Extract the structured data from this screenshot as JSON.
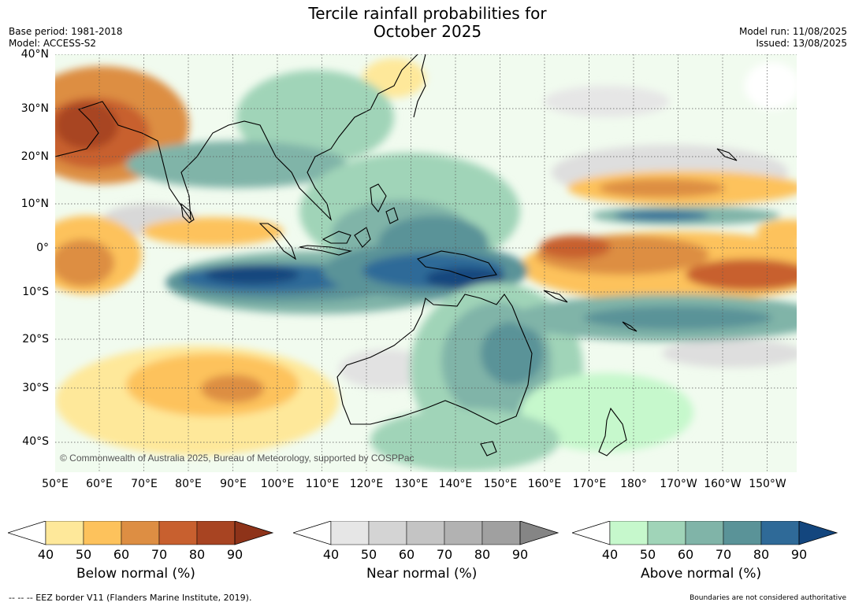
{
  "title_line1": "Tercile rainfall probabilities for",
  "title_line2": "October 2025",
  "base_period": "Base period: 1981-2018",
  "model": "Model: ACCESS-S2",
  "model_run": "Model run: 11/08/2025",
  "issued": "Issued: 13/08/2025",
  "copyright": "© Commonwealth of Australia 2025, Bureau of Meteorology, supported by COSPPac",
  "lat_labels": [
    "40°N",
    "30°N",
    "20°N",
    "10°N",
    "0°",
    "10°S",
    "20°S",
    "30°S",
    "40°S"
  ],
  "lon_labels": [
    "50°E",
    "60°E",
    "70°E",
    "80°E",
    "90°E",
    "100°E",
    "110°E",
    "120°E",
    "130°E",
    "140°E",
    "150°E",
    "160°E",
    "170°E",
    "180°",
    "170°W",
    "160°W",
    "150°W"
  ],
  "colorbars": [
    {
      "title": "Below normal (%)",
      "ticks": [
        "40",
        "50",
        "60",
        "70",
        "80",
        "90"
      ],
      "colors": [
        "#ffffff",
        "#fee89a",
        "#fdc25c",
        "#dd8e43",
        "#c8602f",
        "#a84422",
        "#8e3319"
      ]
    },
    {
      "title": "Near normal (%)",
      "ticks": [
        "40",
        "50",
        "60",
        "70",
        "80",
        "90"
      ],
      "colors": [
        "#ffffff",
        "#e6e6e6",
        "#d4d4d4",
        "#c4c4c4",
        "#b2b2b2",
        "#a0a0a0",
        "#858585"
      ]
    },
    {
      "title": "Above normal (%)",
      "ticks": [
        "40",
        "50",
        "60",
        "70",
        "80",
        "90"
      ],
      "colors": [
        "#ffffff",
        "#c6f8cc",
        "#a0d4b8",
        "#80b4a8",
        "#5a9398",
        "#2f6a98",
        "#13467e"
      ]
    }
  ],
  "footer_left": "-- -- -- EEZ border V11 (Flanders Marine Institute, 2019).",
  "footer_right": "Boundaries are not considered authoritative"
}
